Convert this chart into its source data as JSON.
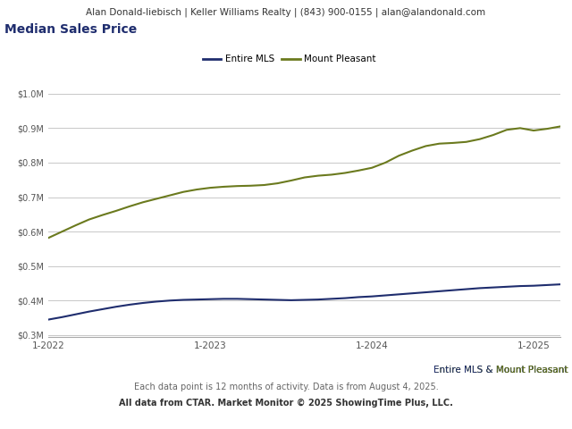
{
  "header": "Alan Donald-liebisch | Keller Williams Realty | (843) 900-0155 | alan@alandonald.com",
  "title": "Median Sales Price",
  "legend_labels": [
    "Entire MLS",
    "Mount Pleasant"
  ],
  "x_tick_positions": [
    0,
    12,
    24,
    36
  ],
  "x_tick_labels": [
    "1-2022",
    "1-2023",
    "1-2024",
    "1-2025"
  ],
  "ylim": [
    295000,
    1060000
  ],
  "yticks": [
    300000,
    400000,
    500000,
    600000,
    700000,
    800000,
    900000,
    1000000
  ],
  "ytick_labels": [
    "$0.3M",
    "$0.4M",
    "$0.5M",
    "$0.6M",
    "$0.7M",
    "$0.8M",
    "$0.9M",
    "$1.0M"
  ],
  "mls_color": "#1f2d6e",
  "mp_color": "#6b7a1e",
  "header_bg": "#e4e4e4",
  "grid_color": "#c8c8c8",
  "mls_values": [
    345000,
    352000,
    360000,
    368000,
    375000,
    382000,
    388000,
    393000,
    397000,
    400000,
    402000,
    403000,
    404000,
    405000,
    405000,
    404000,
    403000,
    402000,
    401000,
    402000,
    403000,
    405000,
    407000,
    410000,
    412000,
    415000,
    418000,
    421000,
    424000,
    427000,
    430000,
    433000,
    436000,
    438000,
    440000,
    442000,
    443000,
    445000,
    447000
  ],
  "mp_values": [
    582000,
    600000,
    618000,
    635000,
    648000,
    660000,
    673000,
    685000,
    695000,
    705000,
    715000,
    722000,
    727000,
    730000,
    732000,
    733000,
    735000,
    740000,
    748000,
    757000,
    762000,
    765000,
    770000,
    777000,
    785000,
    800000,
    820000,
    835000,
    848000,
    855000,
    857000,
    860000,
    868000,
    880000,
    895000,
    900000,
    893000,
    898000,
    905000
  ],
  "footer_note2": "Each data point is 12 months of activity. Data is from August 4, 2025.",
  "footer_note3": "All data from CTAR. Market Monitor © 2025 ShowingTime Plus, LLC."
}
